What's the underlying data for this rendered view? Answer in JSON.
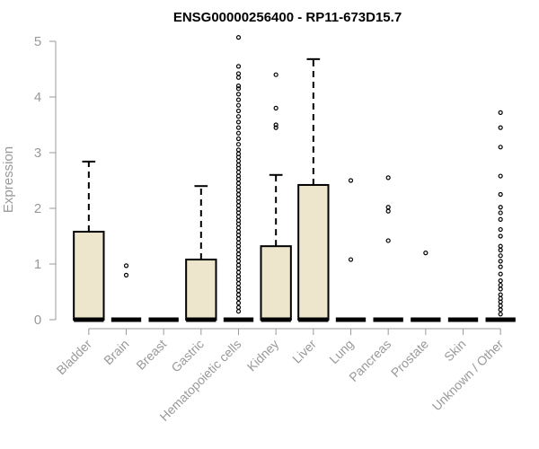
{
  "chart_data": {
    "type": "box",
    "title": "ENSG00000256400 - RP11-673D15.7",
    "xlabel": "",
    "ylabel": "Expression",
    "ylim": [
      0,
      5
    ],
    "yticks": [
      0,
      1,
      2,
      3,
      4,
      5
    ],
    "grid": false,
    "categories": [
      "Bladder",
      "Brain",
      "Breast",
      "Gastric",
      "Hematopoietic cells",
      "Kidney",
      "Liver",
      "Lung",
      "Pancreas",
      "Prostate",
      "Skin",
      "Unknown / Other"
    ],
    "boxes": [
      {
        "category": "Bladder",
        "q1": 0,
        "median": 0,
        "q3": 1.58,
        "whisker_low": 0,
        "whisker_high": 2.84,
        "outliers": []
      },
      {
        "category": "Brain",
        "q1": 0,
        "median": 0,
        "q3": 0,
        "whisker_low": 0,
        "whisker_high": 0,
        "outliers": [
          0.8,
          0.97
        ]
      },
      {
        "category": "Breast",
        "q1": 0,
        "median": 0,
        "q3": 0,
        "whisker_low": 0,
        "whisker_high": 0,
        "outliers": []
      },
      {
        "category": "Gastric",
        "q1": 0,
        "median": 0,
        "q3": 1.08,
        "whisker_low": 0,
        "whisker_high": 2.4,
        "outliers": []
      },
      {
        "category": "Hematopoietic cells",
        "q1": 0,
        "median": 0,
        "q3": 0,
        "whisker_low": 0,
        "whisker_high": 0,
        "outliers": [
          0.15,
          0.22,
          0.3,
          0.38,
          0.45,
          0.52,
          0.58,
          0.65,
          0.72,
          0.78,
          0.85,
          0.92,
          0.98,
          1.05,
          1.12,
          1.18,
          1.25,
          1.32,
          1.38,
          1.45,
          1.52,
          1.58,
          1.65,
          1.72,
          1.78,
          1.85,
          1.92,
          1.98,
          2.05,
          2.12,
          2.18,
          2.25,
          2.32,
          2.38,
          2.45,
          2.52,
          2.58,
          2.65,
          2.72,
          2.78,
          2.85,
          2.92,
          2.98,
          3.05,
          3.15,
          3.25,
          3.35,
          3.45,
          3.55,
          3.65,
          3.75,
          3.85,
          3.95,
          4.05,
          4.15,
          4.2,
          4.35,
          4.42,
          4.55,
          5.07
        ]
      },
      {
        "category": "Kidney",
        "q1": 0,
        "median": 0,
        "q3": 1.32,
        "whisker_low": 0,
        "whisker_high": 2.6,
        "outliers": [
          3.45,
          3.5,
          3.8,
          4.4
        ]
      },
      {
        "category": "Liver",
        "q1": 0,
        "median": 0,
        "q3": 2.42,
        "whisker_low": 0,
        "whisker_high": 4.68,
        "outliers": []
      },
      {
        "category": "Lung",
        "q1": 0,
        "median": 0,
        "q3": 0,
        "whisker_low": 0,
        "whisker_high": 0,
        "outliers": [
          1.08,
          2.5
        ]
      },
      {
        "category": "Pancreas",
        "q1": 0,
        "median": 0,
        "q3": 0,
        "whisker_low": 0,
        "whisker_high": 0,
        "outliers": [
          1.42,
          1.95,
          2.02,
          2.55
        ]
      },
      {
        "category": "Prostate",
        "q1": 0,
        "median": 0,
        "q3": 0,
        "whisker_low": 0,
        "whisker_high": 0,
        "outliers": [
          1.2
        ]
      },
      {
        "category": "Skin",
        "q1": 0,
        "median": 0,
        "q3": 0,
        "whisker_low": 0,
        "whisker_high": 0,
        "outliers": []
      },
      {
        "category": "Unknown / Other",
        "q1": 0,
        "median": 0,
        "q3": 0,
        "whisker_low": 0,
        "whisker_high": 0,
        "outliers": [
          0.1,
          0.18,
          0.25,
          0.32,
          0.38,
          0.45,
          0.55,
          0.62,
          0.7,
          0.82,
          0.95,
          1.05,
          1.15,
          1.25,
          1.32,
          1.5,
          1.62,
          1.8,
          1.92,
          2.02,
          2.25,
          2.58,
          3.1,
          3.45,
          3.72
        ]
      }
    ],
    "colors": {
      "box_fill": "#ede6cc",
      "stroke": "#000000",
      "axis_text": "#999999"
    }
  }
}
